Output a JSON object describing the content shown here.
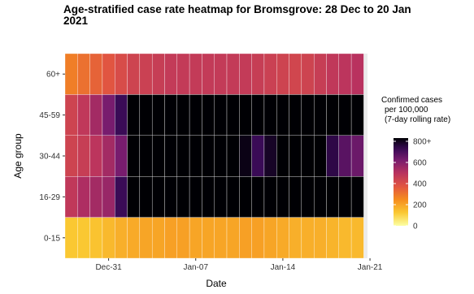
{
  "chart_data": {
    "type": "heatmap",
    "title_lines": [
      "Age-stratified case rate heatmap for Bromsgrove: 28 Dec to 20 Jan",
      "2021"
    ],
    "xlabel": "Date",
    "ylabel": "Age group",
    "x_start_date": "2020-12-28",
    "x_end_date": "2021-01-20",
    "x_ticks": [
      "Dec-31",
      "Jan-07",
      "Jan-14",
      "Jan-21"
    ],
    "age_groups": [
      "0-15",
      "16-29",
      "30-44",
      "45-59",
      "60+"
    ],
    "dates": [
      "2020-12-28",
      "2020-12-29",
      "2020-12-30",
      "2020-12-31",
      "2021-01-01",
      "2021-01-02",
      "2021-01-03",
      "2021-01-04",
      "2021-01-05",
      "2021-01-06",
      "2021-01-07",
      "2021-01-08",
      "2021-01-09",
      "2021-01-10",
      "2021-01-11",
      "2021-01-12",
      "2021-01-13",
      "2021-01-14",
      "2021-01-15",
      "2021-01-16",
      "2021-01-17",
      "2021-01-18",
      "2021-01-19",
      "2021-01-20"
    ],
    "values": {
      "60+": [
        270,
        300,
        330,
        360,
        390,
        420,
        430,
        440,
        450,
        450,
        450,
        450,
        450,
        450,
        450,
        440,
        430,
        420,
        410,
        420,
        440,
        460,
        470,
        480
      ],
      "45-59": [
        420,
        460,
        520,
        600,
        700,
        810,
        850,
        860,
        860,
        860,
        860,
        860,
        860,
        860,
        860,
        860,
        860,
        860,
        860,
        860,
        860,
        860,
        860,
        860
      ],
      "30-44": [
        420,
        440,
        470,
        520,
        600,
        810,
        850,
        860,
        860,
        860,
        860,
        860,
        860,
        860,
        780,
        700,
        760,
        820,
        860,
        860,
        860,
        720,
        650,
        620
      ],
      "16-29": [
        460,
        500,
        520,
        540,
        700,
        820,
        860,
        860,
        860,
        860,
        860,
        860,
        860,
        860,
        860,
        860,
        860,
        860,
        860,
        860,
        860,
        860,
        860,
        860
      ],
      "0-15": [
        120,
        120,
        130,
        150,
        170,
        180,
        190,
        190,
        200,
        200,
        190,
        190,
        190,
        190,
        200,
        200,
        190,
        180,
        170,
        170,
        170,
        160,
        150,
        150
      ]
    },
    "legend": {
      "title_lines": [
        "Confirmed cases",
        "per 100,000",
        "(7-day rolling rate)"
      ],
      "ticks": [
        {
          "value": 0,
          "label": "0"
        },
        {
          "value": 200,
          "label": "200"
        },
        {
          "value": 400,
          "label": "400"
        },
        {
          "value": 600,
          "label": "600"
        },
        {
          "value": 800,
          "label": "800+"
        }
      ],
      "max": 800,
      "position": "right"
    },
    "colorscale": "inferno",
    "grid": true
  }
}
